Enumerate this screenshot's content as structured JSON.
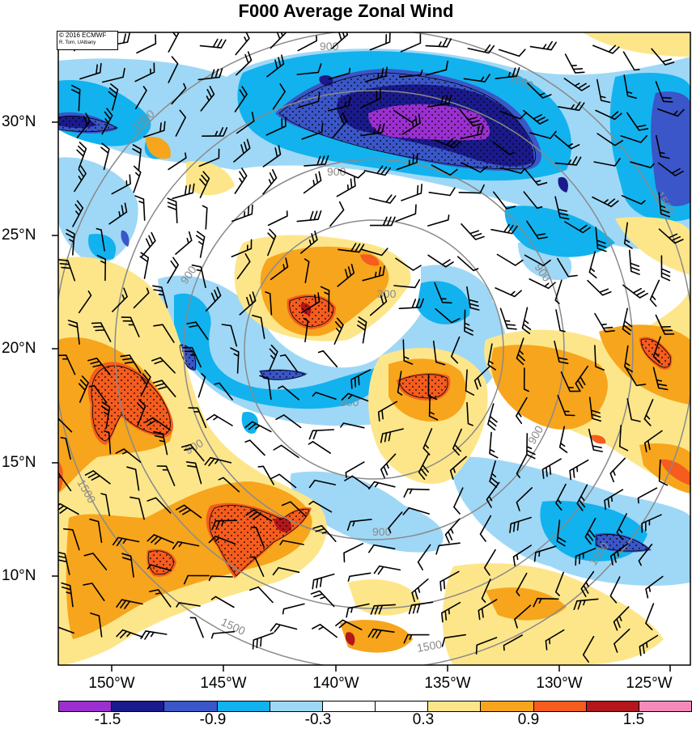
{
  "title": "F000 Average Zonal Wind",
  "credit": {
    "line1": "© 2016 ECMWF",
    "line2": "R. Torn, UAlbany"
  },
  "map": {
    "lat_labels": [
      "30°N",
      "25°N",
      "20°N",
      "15°N",
      "10°N"
    ],
    "lon_labels": [
      "150°W",
      "145°W",
      "140°W",
      "135°W",
      "130°W",
      "125°W"
    ],
    "radius_contour_labels": [
      "300",
      "900",
      "1500"
    ],
    "stippling": "dots"
  },
  "colorbar": {
    "labels": [
      "-1.5",
      "-0.9",
      "-0.3",
      "0.3",
      "0.9",
      "1.5"
    ],
    "colors": [
      "#9b2fd0",
      "#1a1a8c",
      "#3a56c8",
      "#12b2ee",
      "#9fd8f6",
      "#ffffff",
      "#ffffff",
      "#fde68a",
      "#f7a51c",
      "#f55c1e",
      "#b3161b",
      "#f58aba"
    ]
  }
}
